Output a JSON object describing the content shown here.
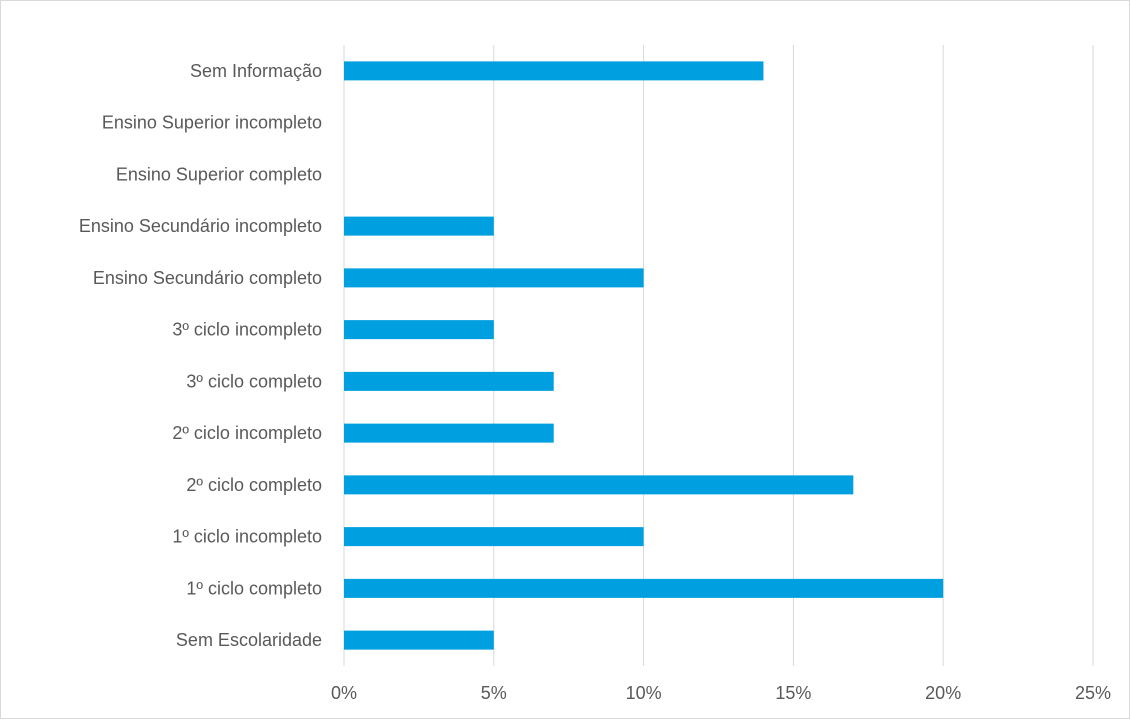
{
  "chart_data": {
    "type": "bar",
    "orientation": "horizontal",
    "categories": [
      "Sem Escolaridade",
      "1º ciclo completo",
      "1º ciclo incompleto",
      "2º ciclo completo",
      "2º ciclo incompleto",
      "3º ciclo completo",
      "3º ciclo incompleto",
      "Ensino Secundário completo",
      "Ensino Secundário incompleto",
      "Ensino Superior completo",
      "Ensino Superior incompleto",
      "Sem Informação"
    ],
    "values": [
      5,
      20,
      10,
      17,
      7,
      7,
      5,
      10,
      5,
      0,
      0,
      14
    ],
    "xlim": [
      0,
      25
    ],
    "ticks": [
      0,
      5,
      10,
      15,
      20,
      25
    ],
    "tick_labels": [
      "0%",
      "5%",
      "10%",
      "15%",
      "20%",
      "25%"
    ],
    "title": "",
    "xlabel": "",
    "ylabel": "",
    "grid": "vertical",
    "legend": "none",
    "bar_color": "#009fdf",
    "grid_color": "#d9d9d9"
  }
}
